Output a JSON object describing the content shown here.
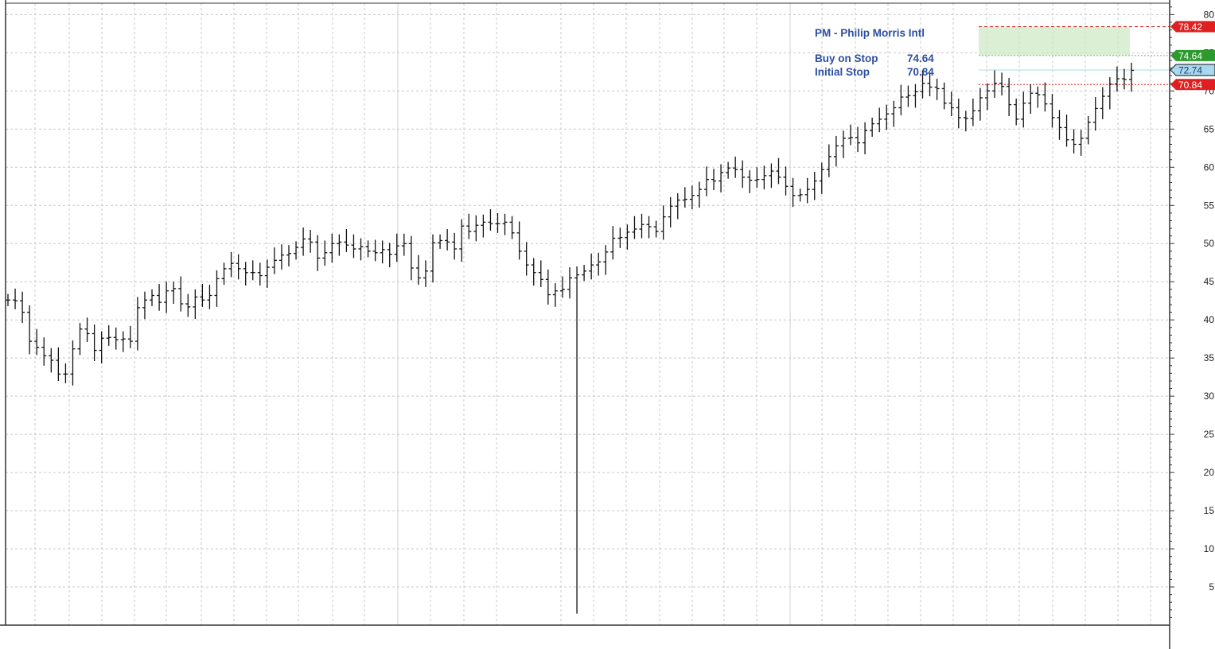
{
  "chart_data": {
    "type": "bar",
    "style": "ohlc",
    "title": "PM - Philip Morris Intl",
    "info": {
      "buy_label": "Buy on Stop",
      "buy_value": "74.64",
      "stop_label": "Initial Stop",
      "stop_value": "70.84"
    },
    "ylim": [
      0,
      81.5
    ],
    "yticks": [
      5,
      10,
      15,
      20,
      25,
      30,
      35,
      40,
      45,
      50,
      55,
      60,
      65,
      70,
      75,
      80
    ],
    "grid": true,
    "axis_position": "right",
    "levels": [
      {
        "name": "target",
        "value": 78.42,
        "label": "78.42",
        "color": "#e02020",
        "text_color": "#ffffff"
      },
      {
        "name": "entry",
        "value": 74.64,
        "label": "74.64",
        "color": "#2e9a2e",
        "text_color": "#ffffff"
      },
      {
        "name": "last",
        "value": 72.74,
        "label": "72.74",
        "color": "#a8d8f0",
        "text_color": "#1a3a5a"
      },
      {
        "name": "stop",
        "value": 70.84,
        "label": "70.84",
        "color": "#e02020",
        "text_color": "#ffffff"
      }
    ],
    "zone": {
      "from": 74.64,
      "to": 78.42,
      "color": "#cfe9c7"
    },
    "closes": [
      42.6,
      42.5,
      41.0,
      37.2,
      36.4,
      35.3,
      34.7,
      32.9,
      32.9,
      36.2,
      38.8,
      38.2,
      36.0,
      37.6,
      37.7,
      37.4,
      37.5,
      37.2,
      41.6,
      42.6,
      43.2,
      42.3,
      43.8,
      44.1,
      42.1,
      41.7,
      43.0,
      42.6,
      43.2,
      45.4,
      46.7,
      47.4,
      46.7,
      46.2,
      46.2,
      45.8,
      46.9,
      47.8,
      48.5,
      48.7,
      49.5,
      50.6,
      50.2,
      48.1,
      48.8,
      50.0,
      50.2,
      49.8,
      49.3,
      49.6,
      49.0,
      48.8,
      49.2,
      48.6,
      49.7,
      50.0,
      46.8,
      45.5,
      46.4,
      50.1,
      50.4,
      50.2,
      49.3,
      52.3,
      51.6,
      52.4,
      52.8,
      52.6,
      52.6,
      52.8,
      51.4,
      49.0,
      47.2,
      46.2,
      45.3,
      43.3,
      43.8,
      44.0,
      45.5,
      45.9,
      46.4,
      47.2,
      47.6,
      48.9,
      50.7,
      50.8,
      51.5,
      51.9,
      52.5,
      52.2,
      51.6,
      53.5,
      54.9,
      55.7,
      55.8,
      56.3,
      57.1,
      58.4,
      58.2,
      59.3,
      59.9,
      59.7,
      58.7,
      58.3,
      58.4,
      58.9,
      59.5,
      58.7,
      57.5,
      56.3,
      56.4,
      57.1,
      58.2,
      59.7,
      61.4,
      62.8,
      63.8,
      63.9,
      63.2,
      64.8,
      65.7,
      66.3,
      67.0,
      67.8,
      69.2,
      69.4,
      69.9,
      71.0,
      70.5,
      70.3,
      68.4,
      67.8,
      66.5,
      66.4,
      67.4,
      69.1,
      70.0,
      71.0,
      70.6,
      68.2,
      66.3,
      68.4,
      69.7,
      69.5,
      68.3,
      66.5,
      65.2,
      63.6,
      63.0,
      63.8,
      65.9,
      67.7,
      69.3,
      70.9,
      71.6,
      71.5,
      72.7
    ]
  }
}
